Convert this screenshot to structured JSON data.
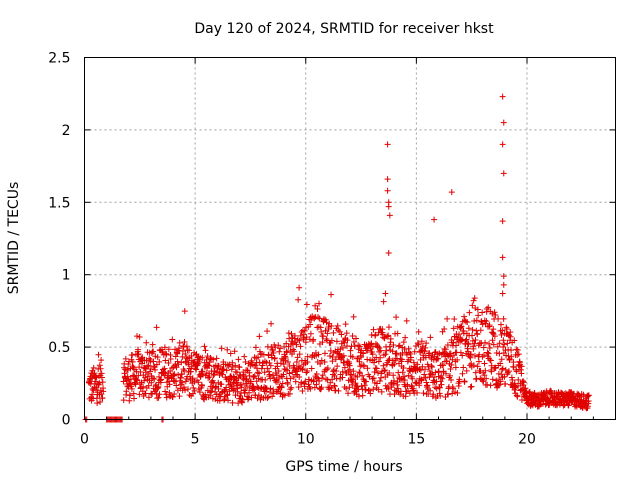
{
  "chart_data": {
    "type": "scatter",
    "title": "Day 120 of 2024, SRMTID for receiver hkst",
    "xlabel": "GPS time / hours",
    "ylabel": "SRMTID / TECUs",
    "xlim": [
      0,
      24
    ],
    "ylim": [
      0,
      2.5
    ],
    "x_ticks": [
      0,
      5,
      10,
      15,
      20
    ],
    "x_tick_labels": [
      "0",
      "5",
      "10",
      "15",
      "20"
    ],
    "y_ticks": [
      0,
      0.5,
      1,
      1.5,
      2,
      2.5
    ],
    "y_tick_labels": [
      "0",
      "0.5",
      "1",
      "1.5",
      "2",
      "2.5"
    ],
    "grid": true,
    "marker": "+",
    "color": "#e00000",
    "series": [
      {
        "name": "SRMTID",
        "profile_note": "dense series; baseline profile below (hour, typical TECU level)",
        "profile": [
          [
            0.2,
            0.22
          ],
          [
            0.5,
            0.24
          ],
          [
            0.9,
            0.28
          ],
          [
            1.6,
            0.3
          ],
          [
            2.0,
            0.28
          ],
          [
            2.5,
            0.32
          ],
          [
            3.0,
            0.3
          ],
          [
            3.5,
            0.33
          ],
          [
            4.0,
            0.33
          ],
          [
            4.5,
            0.35
          ],
          [
            5.0,
            0.3
          ],
          [
            5.5,
            0.3
          ],
          [
            6.0,
            0.28
          ],
          [
            6.5,
            0.25
          ],
          [
            7.0,
            0.25
          ],
          [
            7.5,
            0.28
          ],
          [
            8.0,
            0.3
          ],
          [
            8.5,
            0.33
          ],
          [
            9.0,
            0.35
          ],
          [
            9.5,
            0.4
          ],
          [
            10.0,
            0.45
          ],
          [
            10.5,
            0.47
          ],
          [
            11.0,
            0.45
          ],
          [
            11.5,
            0.42
          ],
          [
            12.0,
            0.38
          ],
          [
            12.5,
            0.35
          ],
          [
            13.0,
            0.38
          ],
          [
            13.5,
            0.42
          ],
          [
            14.0,
            0.35
          ],
          [
            14.5,
            0.32
          ],
          [
            15.0,
            0.35
          ],
          [
            15.5,
            0.32
          ],
          [
            16.0,
            0.3
          ],
          [
            16.5,
            0.35
          ],
          [
            17.0,
            0.42
          ],
          [
            17.5,
            0.5
          ],
          [
            18.0,
            0.52
          ],
          [
            18.5,
            0.5
          ],
          [
            19.0,
            0.45
          ],
          [
            19.5,
            0.35
          ],
          [
            20.0,
            0.15
          ],
          [
            20.5,
            0.13
          ],
          [
            21.0,
            0.15
          ],
          [
            21.5,
            0.14
          ],
          [
            22.0,
            0.14
          ],
          [
            22.5,
            0.13
          ],
          [
            22.8,
            0.12
          ]
        ],
        "spikes": [
          [
            9.7,
            0.91
          ],
          [
            10.6,
            0.8
          ],
          [
            13.6,
            0.87
          ],
          [
            13.7,
            1.9
          ],
          [
            13.7,
            1.66
          ],
          [
            13.7,
            1.58
          ],
          [
            13.75,
            1.5
          ],
          [
            13.75,
            1.47
          ],
          [
            13.8,
            1.41
          ],
          [
            13.75,
            1.15
          ],
          [
            15.8,
            1.38
          ],
          [
            16.6,
            1.57
          ],
          [
            18.9,
            2.23
          ],
          [
            18.95,
            2.05
          ],
          [
            18.9,
            1.9
          ],
          [
            18.95,
            1.7
          ],
          [
            18.9,
            1.37
          ],
          [
            18.9,
            1.12
          ],
          [
            18.95,
            0.99
          ],
          [
            18.95,
            0.93
          ],
          [
            18.9,
            0.87
          ]
        ],
        "zero_points": [
          0.05,
          0.1,
          1.0,
          1.05,
          1.1,
          1.15,
          1.2,
          1.25,
          1.3,
          1.35,
          1.4,
          1.45,
          1.5,
          1.55,
          1.6,
          1.65,
          1.7,
          3.5,
          3.55
        ]
      }
    ]
  }
}
